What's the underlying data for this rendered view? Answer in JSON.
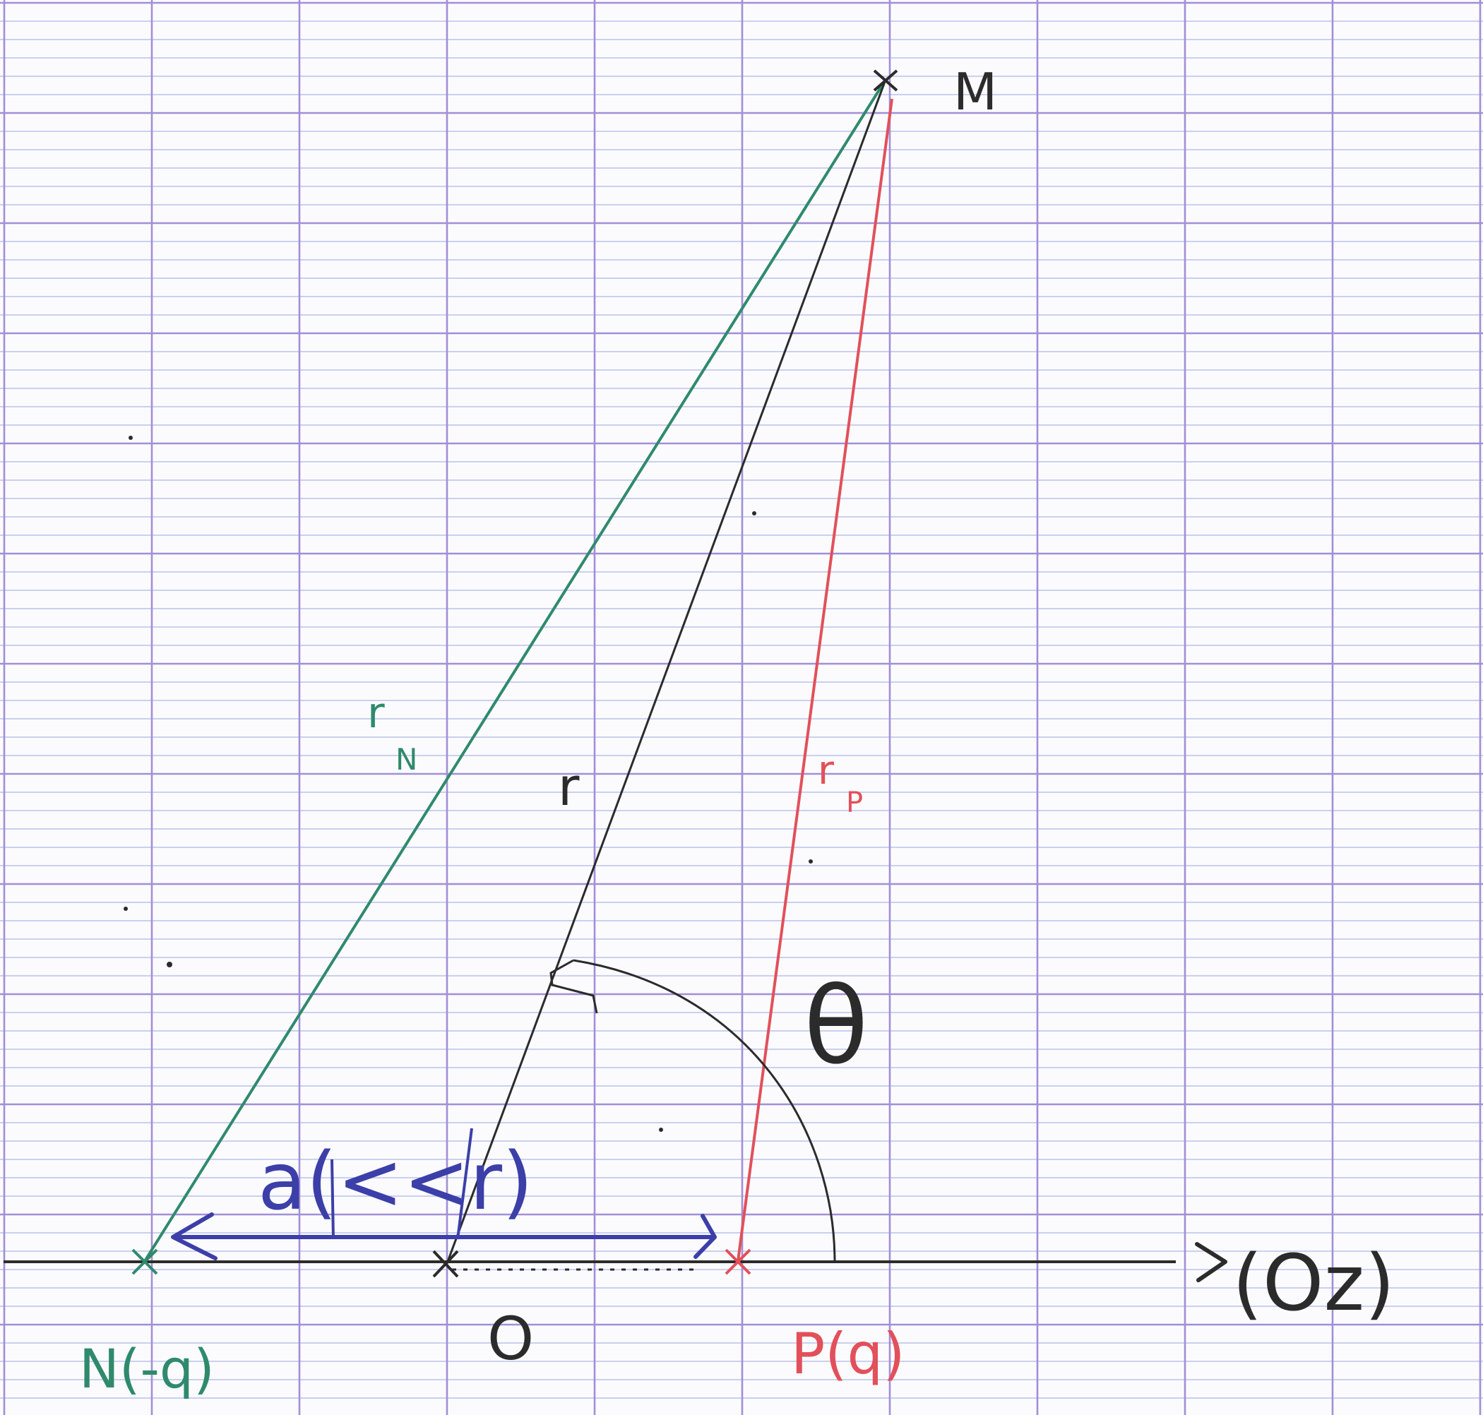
{
  "diagram": {
    "labels": {
      "M": "M",
      "N": "N(-q)",
      "O": "O",
      "P": "P(q)",
      "axis": "(Oz)",
      "r": "r",
      "r_N": "r",
      "r_N_sub": "N",
      "r_P": "r",
      "r_P_sub": "P",
      "theta": "θ",
      "a_cond": "a(<<r)"
    },
    "colors": {
      "grid_minor": "#b9c2ea",
      "grid_major": "#a28fd6",
      "black": "#2b2b2b",
      "green": "#2f8a6c",
      "red": "#e2505a",
      "blue": "#3c3fa8"
    }
  }
}
